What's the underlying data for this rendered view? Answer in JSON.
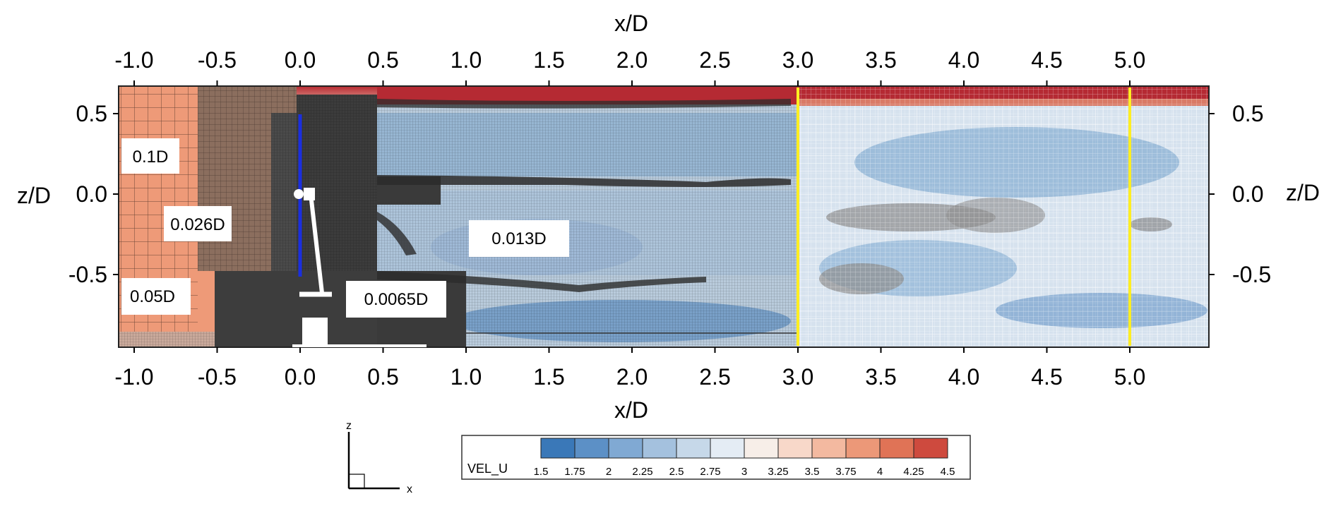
{
  "figure": {
    "x_axis_label": "x/D",
    "z_axis_label": "z/D",
    "x_ticks": [
      "-1.0",
      "-0.5",
      "0.0",
      "0.5",
      "1.0",
      "1.5",
      "2.0",
      "2.5",
      "3.0",
      "3.5",
      "4.0",
      "4.5",
      "5.0"
    ],
    "z_ticks": [
      "0.5",
      "0.0",
      "-0.5"
    ],
    "resolution_labels": [
      "0.1D",
      "0.026D",
      "0.05D",
      "0.0065D",
      "0.013D"
    ],
    "marker_lines_xD": [
      3.0,
      5.0
    ],
    "marker_color": "#ffee22",
    "triad": {
      "up": "z",
      "right": "x"
    },
    "colorbar": {
      "title": "VEL_U",
      "ticks": [
        "1.5",
        "1.75",
        "2",
        "2.25",
        "2.5",
        "2.75",
        "3",
        "3.25",
        "3.5",
        "3.75",
        "4",
        "4.25",
        "4.5"
      ],
      "colors": [
        "#3a78b8",
        "#5c90c6",
        "#80a9d3",
        "#a4c1de",
        "#c6d8e9",
        "#e4ecf4",
        "#f7eee8",
        "#f8d8c9",
        "#f3b9a0",
        "#ec9878",
        "#e07356",
        "#ce4a3e",
        "#b01f2e"
      ]
    }
  }
}
